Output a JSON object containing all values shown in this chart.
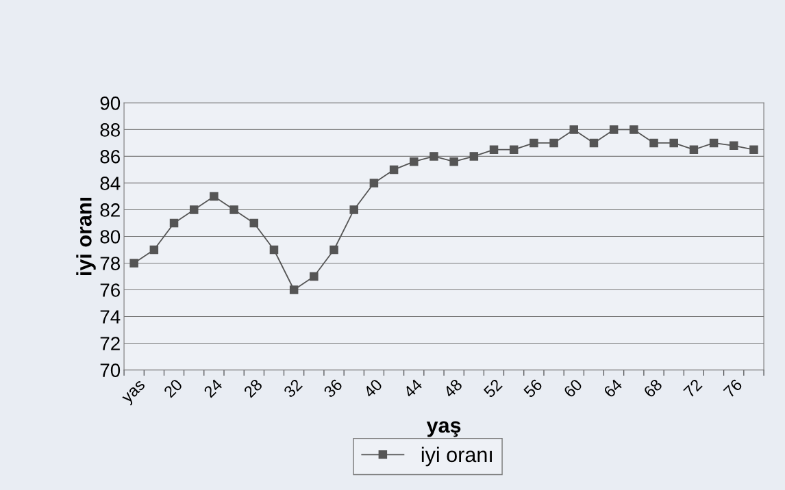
{
  "chart_data": {
    "type": "line",
    "xlabel": "yaş",
    "ylabel": "iyi oranı",
    "categories": [
      "yas",
      null,
      "20",
      null,
      "24",
      null,
      "28",
      null,
      "32",
      null,
      "36",
      null,
      "40",
      null,
      "44",
      null,
      "48",
      null,
      "52",
      null,
      "56",
      null,
      "60",
      null,
      "64",
      null,
      "68",
      null,
      "72",
      null,
      "76",
      null
    ],
    "series": [
      {
        "name": "iyi oranı",
        "color": "#555555",
        "values": [
          78,
          79,
          81,
          82,
          83,
          82,
          81,
          79,
          76,
          77,
          79,
          82,
          84,
          85,
          85.6,
          86,
          85.6,
          86,
          86.5,
          86.5,
          87,
          87,
          88,
          87,
          88,
          88,
          87,
          87,
          86.5,
          87,
          86.8,
          86.5
        ]
      }
    ],
    "ylim": [
      70,
      90
    ],
    "yticks": [
      70,
      72,
      74,
      76,
      78,
      80,
      82,
      84,
      86,
      88,
      90
    ],
    "grid": "y",
    "legend": "bottom",
    "marker": "square",
    "line_style": "solid"
  }
}
